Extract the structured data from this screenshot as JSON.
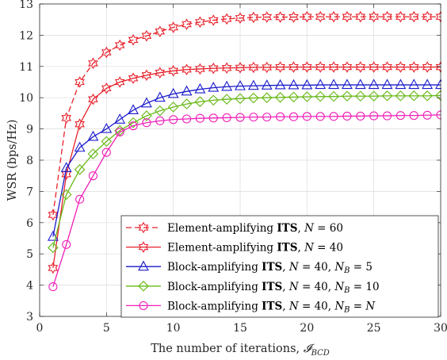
{
  "chart_data": {
    "type": "line",
    "xlabel": "The number of iterations, 𝓘_{BCD}",
    "ylabel": "WSR (bps/Hz)",
    "xlim": [
      0,
      30
    ],
    "ylim": [
      3,
      13
    ],
    "xticks": [
      0,
      5,
      10,
      15,
      20,
      25,
      30
    ],
    "yticks": [
      3,
      4,
      5,
      6,
      7,
      8,
      9,
      10,
      11,
      12,
      13
    ],
    "grid": true,
    "legend_position": "bottom-right",
    "x": [
      1,
      2,
      3,
      4,
      5,
      6,
      7,
      8,
      9,
      10,
      11,
      12,
      13,
      14,
      15,
      16,
      17,
      18,
      19,
      20,
      21,
      22,
      23,
      24,
      25,
      26,
      27,
      28,
      29,
      30
    ],
    "series": [
      {
        "name": "Element-amplifying ITS, N = 60",
        "legend_parts": [
          {
            "text": "Element-amplifying ",
            "style": "normal"
          },
          {
            "text": "ITS",
            "style": "bold"
          },
          {
            "text": ", ",
            "style": "normal"
          },
          {
            "text": "N",
            "style": "italic"
          },
          {
            "text": " = 60",
            "style": "normal"
          }
        ],
        "color": "#e8202a",
        "dash": "dashed",
        "marker": "hexagram",
        "values": [
          6.25,
          9.35,
          10.5,
          11.1,
          11.45,
          11.68,
          11.85,
          11.98,
          12.12,
          12.25,
          12.35,
          12.42,
          12.48,
          12.52,
          12.55,
          12.57,
          12.58,
          12.58,
          12.58,
          12.59,
          12.59,
          12.59,
          12.59,
          12.59,
          12.59,
          12.59,
          12.59,
          12.59,
          12.59,
          12.59
        ]
      },
      {
        "name": "Element-amplifying ITS, N = 40",
        "legend_parts": [
          {
            "text": "Element-amplifying ",
            "style": "normal"
          },
          {
            "text": "ITS",
            "style": "bold"
          },
          {
            "text": ", ",
            "style": "normal"
          },
          {
            "text": "N",
            "style": "italic"
          },
          {
            "text": " = 40",
            "style": "normal"
          }
        ],
        "color": "#e8202a",
        "dash": "solid",
        "marker": "hexagram",
        "values": [
          4.55,
          7.55,
          9.15,
          9.95,
          10.3,
          10.5,
          10.62,
          10.72,
          10.8,
          10.86,
          10.9,
          10.92,
          10.94,
          10.95,
          10.96,
          10.97,
          10.97,
          10.98,
          10.98,
          10.98,
          10.98,
          10.98,
          10.98,
          10.98,
          10.98,
          10.98,
          10.98,
          10.98,
          10.98,
          10.98
        ]
      },
      {
        "name": "Block-amplifying ITS, N = 40, N_B = 5",
        "legend_parts": [
          {
            "text": "Block-amplifying ",
            "style": "normal"
          },
          {
            "text": "ITS",
            "style": "bold"
          },
          {
            "text": ", ",
            "style": "normal"
          },
          {
            "text": "N",
            "style": "italic"
          },
          {
            "text": " = 40, ",
            "style": "normal"
          },
          {
            "text": "N",
            "style": "italic"
          },
          {
            "text": "B",
            "style": "italic-sub"
          },
          {
            "text": " = 5",
            "style": "normal"
          }
        ],
        "color": "#1a1acc",
        "dash": "solid",
        "marker": "triangle",
        "values": [
          5.55,
          7.75,
          8.4,
          8.75,
          9.0,
          9.3,
          9.6,
          9.82,
          10.0,
          10.12,
          10.2,
          10.27,
          10.32,
          10.35,
          10.37,
          10.38,
          10.39,
          10.4,
          10.4,
          10.4,
          10.41,
          10.41,
          10.41,
          10.41,
          10.41,
          10.41,
          10.41,
          10.41,
          10.41,
          10.41
        ]
      },
      {
        "name": "Block-amplifying ITS, N = 40, N_B = 10",
        "legend_parts": [
          {
            "text": "Block-amplifying ",
            "style": "normal"
          },
          {
            "text": "ITS",
            "style": "bold"
          },
          {
            "text": ", ",
            "style": "normal"
          },
          {
            "text": "N",
            "style": "italic"
          },
          {
            "text": " = 40, ",
            "style": "normal"
          },
          {
            "text": "N",
            "style": "italic"
          },
          {
            "text": "B",
            "style": "italic-sub"
          },
          {
            "text": " = 10",
            "style": "normal"
          }
        ],
        "color": "#66b814",
        "dash": "solid",
        "marker": "diamond",
        "values": [
          5.2,
          6.9,
          7.7,
          8.2,
          8.6,
          8.95,
          9.2,
          9.42,
          9.58,
          9.7,
          9.8,
          9.87,
          9.92,
          9.95,
          9.97,
          9.99,
          10.0,
          10.01,
          10.02,
          10.03,
          10.04,
          10.04,
          10.05,
          10.05,
          10.05,
          10.06,
          10.06,
          10.06,
          10.06,
          10.07
        ]
      },
      {
        "name": "Block-amplifying ITS, N = 40, N_B = N",
        "legend_parts": [
          {
            "text": "Block-amplifying ",
            "style": "normal"
          },
          {
            "text": "ITS",
            "style": "bold"
          },
          {
            "text": ", ",
            "style": "normal"
          },
          {
            "text": "N",
            "style": "italic"
          },
          {
            "text": " = 40, ",
            "style": "normal"
          },
          {
            "text": "N",
            "style": "italic"
          },
          {
            "text": "B",
            "style": "italic-sub"
          },
          {
            "text": " = ",
            "style": "normal"
          },
          {
            "text": "N",
            "style": "italic"
          }
        ],
        "color": "#f020b8",
        "dash": "solid",
        "marker": "circle",
        "values": [
          3.95,
          5.3,
          6.75,
          7.5,
          8.25,
          8.9,
          9.1,
          9.2,
          9.26,
          9.3,
          9.32,
          9.34,
          9.35,
          9.36,
          9.37,
          9.38,
          9.38,
          9.39,
          9.39,
          9.4,
          9.4,
          9.4,
          9.41,
          9.41,
          9.42,
          9.42,
          9.43,
          9.43,
          9.44,
          9.45
        ]
      }
    ]
  }
}
